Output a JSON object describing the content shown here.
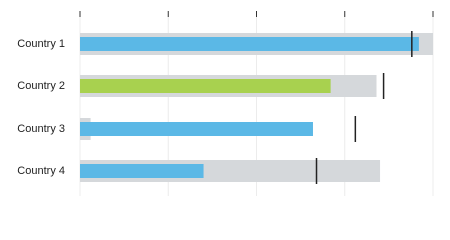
{
  "chart_data": {
    "type": "bullet",
    "categories": [
      "Country 1",
      "Country 2",
      "Country 3",
      "Country 4"
    ],
    "ranges": [
      100,
      84,
      3,
      85
    ],
    "values": [
      96,
      71,
      66,
      35
    ],
    "targets": [
      94,
      86,
      78,
      67
    ],
    "colors": [
      "#5bb8e6",
      "#a8d14f",
      "#5bb8e6",
      "#5bb8e6"
    ],
    "range_color": "#d5d8db",
    "target_color": "#222222",
    "xlim": [
      0,
      100
    ],
    "xticks": [
      0,
      25,
      50,
      75,
      100
    ],
    "grid": true
  }
}
